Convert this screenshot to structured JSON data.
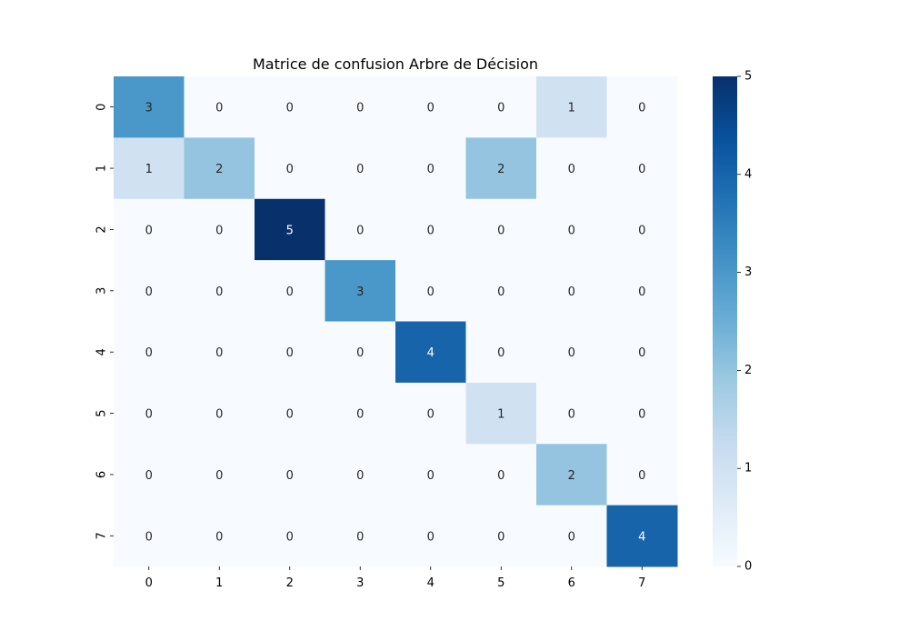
{
  "chart_data": {
    "type": "heatmap",
    "title": "Matrice de confusion Arbre de Décision",
    "xlabel": "",
    "ylabel": "",
    "x_tick_labels": [
      "0",
      "1",
      "2",
      "3",
      "4",
      "5",
      "6",
      "7"
    ],
    "y_tick_labels": [
      "0",
      "1",
      "2",
      "3",
      "4",
      "5",
      "6",
      "7"
    ],
    "matrix": [
      [
        3,
        0,
        0,
        0,
        0,
        0,
        1,
        0
      ],
      [
        1,
        2,
        0,
        0,
        0,
        2,
        0,
        0
      ],
      [
        0,
        0,
        5,
        0,
        0,
        0,
        0,
        0
      ],
      [
        0,
        0,
        0,
        3,
        0,
        0,
        0,
        0
      ],
      [
        0,
        0,
        0,
        0,
        4,
        0,
        0,
        0
      ],
      [
        0,
        0,
        0,
        0,
        0,
        1,
        0,
        0
      ],
      [
        0,
        0,
        0,
        0,
        0,
        0,
        2,
        0
      ],
      [
        0,
        0,
        0,
        0,
        0,
        0,
        0,
        4
      ]
    ],
    "vmin": 0,
    "vmax": 5,
    "colormap": "Blues",
    "colorbar_ticks": [
      "0",
      "1",
      "2",
      "3",
      "4",
      "5"
    ],
    "annotations": true,
    "colors": {
      "low": "#f7fbff",
      "high": "#08306b",
      "text_dark": "#262626",
      "text_light": "#ffffff"
    }
  }
}
